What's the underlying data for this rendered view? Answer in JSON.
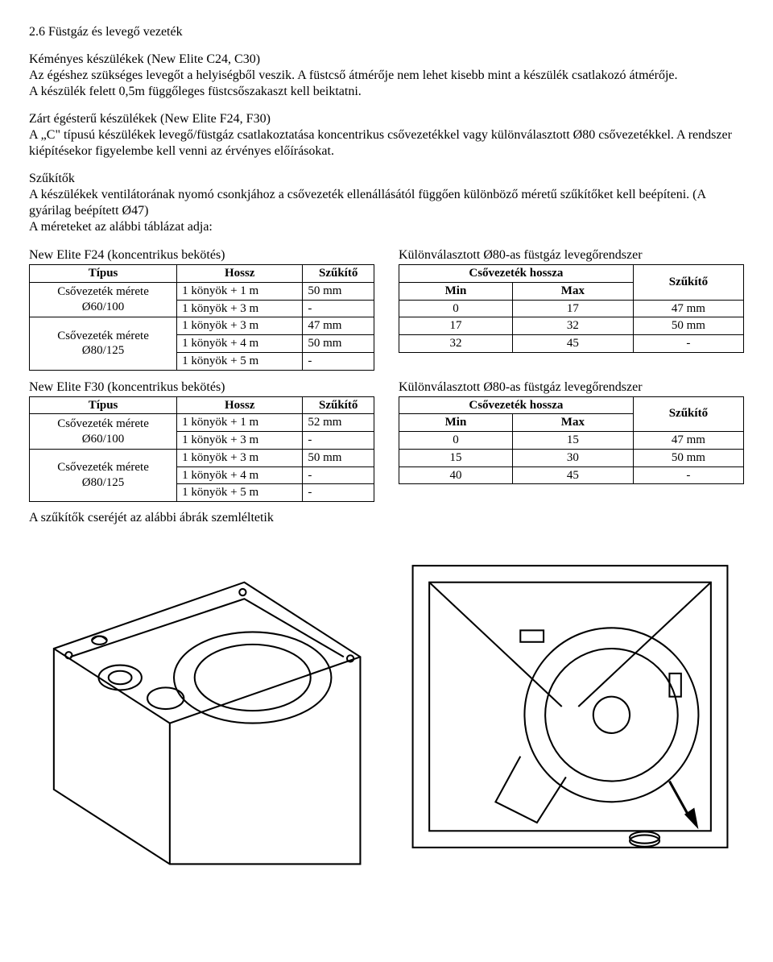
{
  "section_title": "2.6 Füstgáz és levegő vezeték",
  "para1": "Kéményes készülékek (New Elite C24, C30)\nAz égéshez szükséges levegőt a helyiségből veszik. A füstcső átmérője nem lehet kisebb mint a készülék csatlakozó átmérője.\nA készülék felett 0,5m függőleges füstcsőszakaszt kell beiktatni.",
  "para2": "Zárt égésterű készülékek (New Elite F24, F30)\nA „C\" típusú készülékek levegő/füstgáz csatlakoztatása koncentrikus csővezetékkel vagy különválasztott Ø80 csővezetékkel. A rendszer kiépítésekor figyelembe kell venni az érvényes előírásokat.",
  "para3": "Szűkítők\nA készülékek ventilátorának nyomó csonkjához a csővezeték ellenállásától függően különböző méretű szűkítőket kell beépíteni. (A gyárilag beépített Ø47)\nA méreteket az alábbi táblázat adja:",
  "f24_left_caption": "New Elite F24 (koncentrikus bekötés)",
  "f24_right_caption": "Különválasztott Ø80-as füstgáz levegőrendszer",
  "f30_left_caption": "New Elite F30 (koncentrikus bekötés)",
  "f30_right_caption": "Különválasztott Ø80-as füstgáz levegőrendszer",
  "left_headers": {
    "type": "Típus",
    "length": "Hossz",
    "reducer": "Szűkítő"
  },
  "right_headers": {
    "length": "Csővezeték hossza",
    "min": "Min",
    "max": "Max",
    "reducer": "Szűkítő"
  },
  "type_labels": {
    "d60": "Csővezeték mérete\nØ60/100",
    "d80": "Csővezeték mérete\nØ80/125"
  },
  "f24_left": [
    {
      "len": "1 könyök + 1 m",
      "red": "50 mm"
    },
    {
      "len": "1 könyök + 3 m",
      "red": "-"
    },
    {
      "len": "1 könyök + 3 m",
      "red": "47 mm"
    },
    {
      "len": "1 könyök + 4 m",
      "red": "50 mm"
    },
    {
      "len": "1 könyök + 5 m",
      "red": "-"
    }
  ],
  "f24_right": [
    {
      "min": "0",
      "max": "17",
      "red": "47 mm"
    },
    {
      "min": "17",
      "max": "32",
      "red": "50 mm"
    },
    {
      "min": "32",
      "max": "45",
      "red": "-"
    }
  ],
  "f30_left": [
    {
      "len": "1 könyök + 1 m",
      "red": "52 mm"
    },
    {
      "len": "1 könyök + 3 m",
      "red": "-"
    },
    {
      "len": "1 könyök + 3 m",
      "red": "50 mm"
    },
    {
      "len": "1 könyök + 4 m",
      "red": "-"
    },
    {
      "len": "1 könyök + 5 m",
      "red": "-"
    }
  ],
  "f30_right": [
    {
      "min": "0",
      "max": "15",
      "red": "47 mm"
    },
    {
      "min": "15",
      "max": "30",
      "red": "50 mm"
    },
    {
      "min": "40",
      "max": "45",
      "red": "-"
    }
  ],
  "figure_line": "A szűkítők cseréjét az alábbi ábrák szemléltetik"
}
